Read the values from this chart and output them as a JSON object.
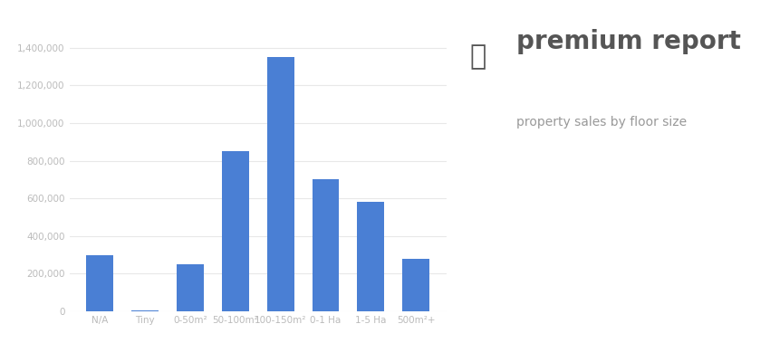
{
  "categories": [
    "N/A",
    "Tiny",
    "0-50m²",
    "50-100m²",
    "100-150m²",
    "0-1 Ha",
    "1-5 Ha",
    "500m²+"
  ],
  "values": [
    300000,
    5000,
    250000,
    850000,
    1350000,
    700000,
    580000,
    280000
  ],
  "bar_color": "#4a7fd4",
  "background_color": "#ffffff",
  "ylim": [
    0,
    1500000
  ],
  "ytick_values": [
    0,
    200000,
    400000,
    600000,
    800000,
    1000000,
    1200000,
    1400000
  ],
  "ytick_labels": [
    "0",
    "200,000",
    "400,000",
    "600,000",
    "800,000",
    "1,000,000",
    "1,200,000",
    "1,400,000"
  ],
  "grid_color": "#e8e8e8",
  "title_main": "premium report",
  "title_sub": "property sales by floor size",
  "title_main_color": "#555555",
  "title_sub_color": "#999999",
  "tick_label_color": "#bbbbbb",
  "bar_alpha": 1.0,
  "title_main_fontsize": 20,
  "title_sub_fontsize": 10,
  "xtick_fontsize": 7.5,
  "ytick_fontsize": 7.5
}
